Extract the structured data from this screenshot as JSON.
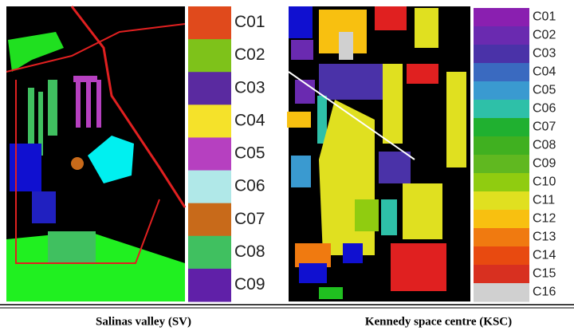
{
  "panels": [
    {
      "caption": "Salinas valley (SV)",
      "legend": [
        {
          "label": "C01",
          "color": "#e04a1c"
        },
        {
          "label": "C02",
          "color": "#7ec21a"
        },
        {
          "label": "C03",
          "color": "#5a2aa0"
        },
        {
          "label": "C04",
          "color": "#f5e22a"
        },
        {
          "label": "C05",
          "color": "#b640c0"
        },
        {
          "label": "C06",
          "color": "#b0e8e8"
        },
        {
          "label": "C07",
          "color": "#c86a1a"
        },
        {
          "label": "C08",
          "color": "#40c060"
        },
        {
          "label": "C09",
          "color": "#6020a8"
        }
      ]
    },
    {
      "caption": "Kennedy space centre (KSC)",
      "legend": [
        {
          "label": "C01",
          "color": "#8a1fb0"
        },
        {
          "label": "C02",
          "color": "#6a2ab0"
        },
        {
          "label": "C03",
          "color": "#4a32a8"
        },
        {
          "label": "C04",
          "color": "#3a6ac0"
        },
        {
          "label": "C05",
          "color": "#3a9ad0"
        },
        {
          "label": "C06",
          "color": "#2ec0a8"
        },
        {
          "label": "C07",
          "color": "#20b030"
        },
        {
          "label": "C08",
          "color": "#40b020"
        },
        {
          "label": "C09",
          "color": "#60b820"
        },
        {
          "label": "C10",
          "color": "#90cc10"
        },
        {
          "label": "C11",
          "color": "#e0e020"
        },
        {
          "label": "C12",
          "color": "#f8c010"
        },
        {
          "label": "C13",
          "color": "#f07a10"
        },
        {
          "label": "C14",
          "color": "#e84a10"
        },
        {
          "label": "C15",
          "color": "#d83020"
        },
        {
          "label": "C16",
          "color": "#d0d0d0"
        }
      ]
    }
  ]
}
